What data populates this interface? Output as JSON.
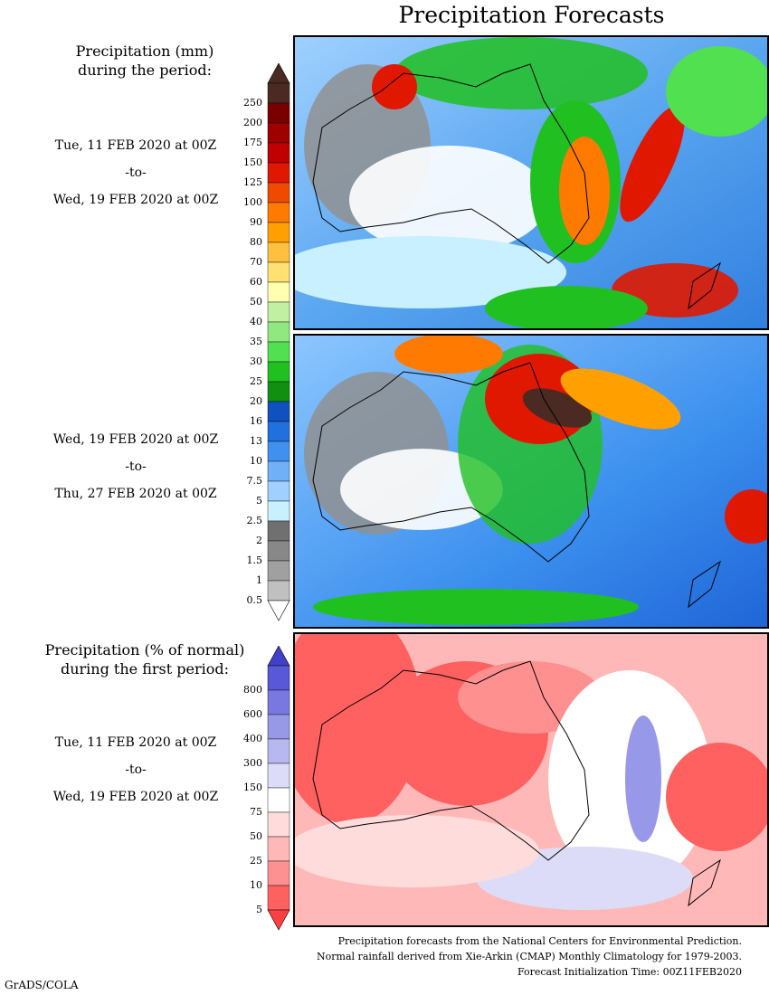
{
  "title": "Precipitation Forecasts",
  "precip_header": [
    "Precipitation (mm)",
    "during the period:"
  ],
  "pct_header": [
    "Precipitation (% of normal)",
    "during the first period:"
  ],
  "periods": [
    {
      "start": "Tue, 11 FEB 2020 at 00Z",
      "sep": "-to-",
      "end": "Wed, 19 FEB 2020 at 00Z"
    },
    {
      "start": "Wed, 19 FEB 2020 at 00Z",
      "sep": "-to-",
      "end": "Thu, 27 FEB 2020 at 00Z"
    },
    {
      "start": "Tue, 11 FEB 2020 at 00Z",
      "sep": "-to-",
      "end": "Wed, 19 FEB 2020 at 00Z"
    }
  ],
  "precip_scale": {
    "labels": [
      "250",
      "200",
      "175",
      "150",
      "125",
      "100",
      "90",
      "80",
      "70",
      "60",
      "50",
      "40",
      "35",
      "30",
      "25",
      "20",
      "16",
      "13",
      "10",
      "7.5",
      "5",
      "2.5",
      "2",
      "1.5",
      "1",
      "0.5"
    ],
    "colors": [
      "#4a2a22",
      "#7a0000",
      "#9e0000",
      "#c00000",
      "#e01800",
      "#f04a00",
      "#ff7a00",
      "#ffa000",
      "#ffc040",
      "#ffe070",
      "#ffffb0",
      "#c0f0a0",
      "#90e880",
      "#50e050",
      "#20c020",
      "#109010",
      "#1050c0",
      "#2070e0",
      "#4090f0",
      "#70b0f8",
      "#a0d0ff",
      "#c8f0ff",
      "#707070",
      "#888888",
      "#a0a0a0",
      "#c0c0c0"
    ],
    "top_color": "#4a2a22",
    "bottom_color": "#ffffff"
  },
  "pct_scale": {
    "labels": [
      "800",
      "600",
      "400",
      "300",
      "150",
      "75",
      "50",
      "25",
      "10",
      "5"
    ],
    "colors": [
      "#5858d8",
      "#7878e0",
      "#9898e8",
      "#b8b8f0",
      "#dcdcf8",
      "#ffffff",
      "#ffdcdc",
      "#ffb8b8",
      "#ff9090",
      "#ff6060"
    ],
    "top_color": "#4040c8",
    "bottom_color": "#ff4040"
  },
  "credits": [
    "Precipitation forecasts from the National Centers for Environmental Prediction.",
    "Normal rainfall derived from Xie-Arkin (CMAP) Monthly Climatology for 1979-2003.",
    "Forecast Initialization Time: 00Z11FEB2020"
  ],
  "software": "GrADS/COLA"
}
